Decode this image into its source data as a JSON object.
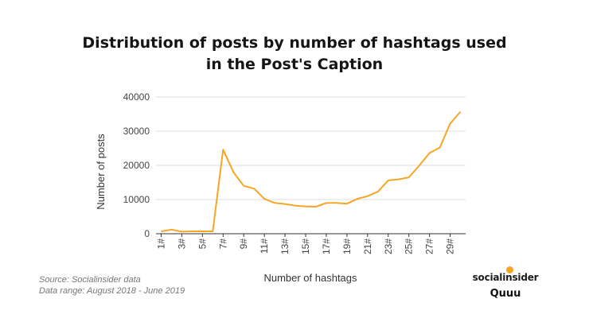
{
  "title_line1": "Distribution of posts by number of hashtags used",
  "title_line2": "in the Post's Caption",
  "source_line1": "Source: Socialinsider data",
  "source_line2": "Data range: August 2018 - June 2019",
  "brand": {
    "socialinsider": "socialinsider",
    "quuu": "Quuu",
    "accent": "#f5a623"
  },
  "chart_data": {
    "type": "line",
    "title": "Distribution of posts by number of hashtags used in the Post's Caption",
    "xlabel": "Number of hashtags",
    "ylabel": "Number of posts",
    "x": [
      1,
      2,
      3,
      4,
      5,
      6,
      7,
      8,
      9,
      10,
      11,
      12,
      13,
      14,
      15,
      16,
      17,
      18,
      19,
      20,
      21,
      22,
      23,
      24,
      25,
      26,
      27,
      28,
      29,
      30
    ],
    "x_tick_labels": [
      "1#",
      "3#",
      "5#",
      "7#",
      "9#",
      "11#",
      "13#",
      "15#",
      "17#",
      "19#",
      "21#",
      "23#",
      "25#",
      "27#",
      "29#"
    ],
    "y_ticks": [
      0,
      10000,
      20000,
      30000,
      40000
    ],
    "ylim": [
      0,
      40000
    ],
    "series": [
      {
        "color": "#f5a623",
        "values": [
          700,
          1200,
          600,
          700,
          700,
          700,
          24600,
          18000,
          14000,
          13200,
          10200,
          9000,
          8700,
          8200,
          8000,
          7900,
          9000,
          9000,
          8800,
          10200,
          11000,
          12300,
          15600,
          15900,
          16500,
          19900,
          23600,
          25200,
          32200,
          35700
        ]
      }
    ],
    "grid": true,
    "legend": "none"
  }
}
